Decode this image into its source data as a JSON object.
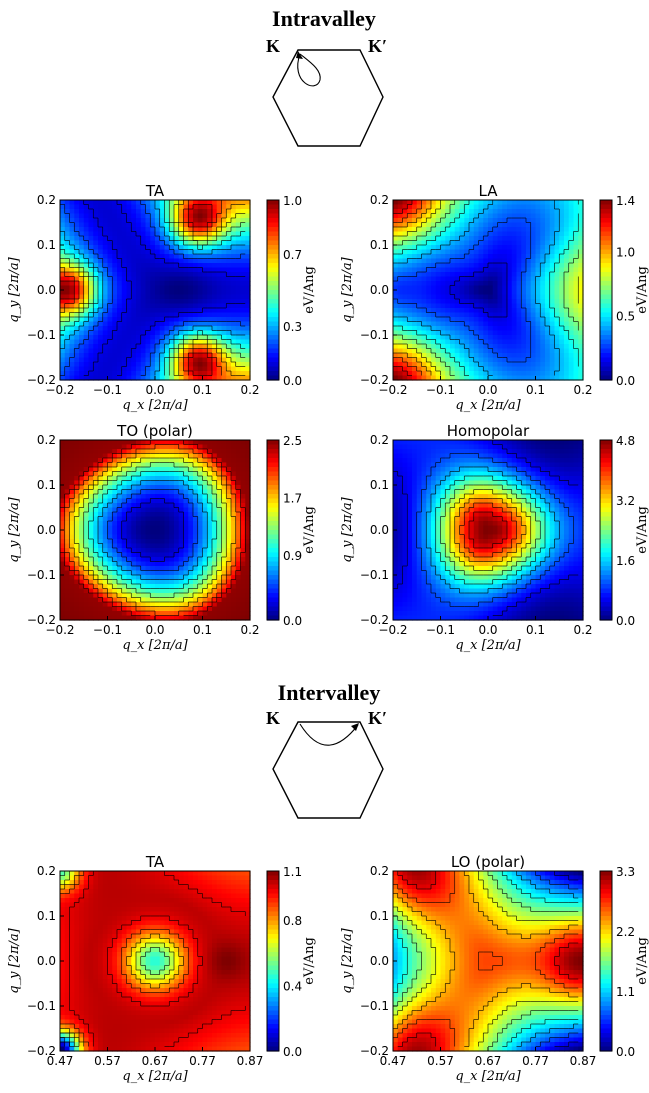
{
  "intravalley": {
    "title": "Intravalley",
    "k_label": "K",
    "kprime_label": "K′"
  },
  "intervalley": {
    "title": "Intervalley",
    "k_label": "K",
    "kprime_label": "K′"
  },
  "colormap": [
    "#00007f",
    "#0000ff",
    "#007fff",
    "#00ffff",
    "#7fff7f",
    "#ffff00",
    "#ff7f00",
    "#ff0000",
    "#7f0000"
  ],
  "chart_data": [
    {
      "type": "heatmap",
      "id": "intra-ta",
      "title": "TA",
      "xlabel": "q_x  [2π/a]",
      "ylabel": "q_y  [2π/a]",
      "xlim": [
        -0.2,
        0.2
      ],
      "ylim": [
        -0.2,
        0.2
      ],
      "xticks": [
        -0.2,
        -0.1,
        0.0,
        0.1,
        0.2
      ],
      "xticklabels": [
        "−0.2",
        "−0.1",
        "0.0",
        "0.1",
        "0.2"
      ],
      "yticks": [
        0.2,
        0.1,
        0.0,
        -0.1,
        -0.2
      ],
      "yticklabels": [
        "0.2",
        "0.1",
        "0.0",
        "−0.1",
        "−0.2"
      ],
      "colorbar": {
        "label": "eV/Ang",
        "min": 0.0,
        "max": 1.0,
        "ticks": [
          "1.0",
          "0.7",
          "0.3",
          "0.0"
        ],
        "tickvalues": [
          1.0,
          0.7,
          0.3,
          0.0
        ]
      },
      "peaks": [
        {
          "x": -0.18,
          "y": 0.0,
          "value": 0.95
        },
        {
          "x": 0.09,
          "y": 0.155,
          "value": 0.95
        },
        {
          "x": 0.09,
          "y": -0.155,
          "value": 0.95
        }
      ],
      "minima": [
        {
          "x": 0.05,
          "y": 0.0,
          "value": 0.05
        },
        {
          "x": -0.08,
          "y": 0.1,
          "value": 0.1
        },
        {
          "x": -0.08,
          "y": -0.1,
          "value": 0.1
        }
      ]
    },
    {
      "type": "heatmap",
      "id": "intra-la",
      "title": "LA",
      "xlabel": "q_x  [2π/a]",
      "ylabel": "q_y  [2π/a]",
      "xlim": [
        -0.2,
        0.2
      ],
      "ylim": [
        -0.2,
        0.2
      ],
      "xticks": [
        -0.2,
        -0.1,
        0.0,
        0.1,
        0.2
      ],
      "xticklabels": [
        "−0.2",
        "−0.1",
        "0.0",
        "0.1",
        "0.2"
      ],
      "yticks": [
        0.2,
        0.1,
        0.0,
        -0.1,
        -0.2
      ],
      "yticklabels": [
        "0.2",
        "0.1",
        "0.0",
        "−0.1",
        "−0.2"
      ],
      "colorbar": {
        "label": "eV/Ang",
        "min": 0.0,
        "max": 1.4,
        "ticks": [
          "1.4",
          "1.0",
          "0.5",
          "0.0"
        ],
        "tickvalues": [
          1.4,
          1.0,
          0.5,
          0.0
        ]
      },
      "peaks": [
        {
          "x": -0.2,
          "y": 0.2,
          "value": 1.3
        },
        {
          "x": -0.2,
          "y": -0.2,
          "value": 1.3
        },
        {
          "x": 0.2,
          "y": 0.0,
          "value": 0.9
        }
      ],
      "minima": [
        {
          "x": 0.0,
          "y": 0.0,
          "value": 0.1
        },
        {
          "x": -0.2,
          "y": 0.0,
          "value": 0.1
        },
        {
          "x": 0.1,
          "y": 0.17,
          "value": 0.1
        },
        {
          "x": 0.1,
          "y": -0.17,
          "value": 0.1
        }
      ]
    },
    {
      "type": "heatmap",
      "id": "intra-to",
      "title": "TO (polar)",
      "xlabel": "q_x  [2π/a]",
      "ylabel": "q_y  [2π/a]",
      "xlim": [
        -0.2,
        0.2
      ],
      "ylim": [
        -0.2,
        0.2
      ],
      "xticks": [
        -0.2,
        -0.1,
        0.0,
        0.1,
        0.2
      ],
      "xticklabels": [
        "−0.2",
        "−0.1",
        "0.0",
        "0.1",
        "0.2"
      ],
      "yticks": [
        0.2,
        0.1,
        0.0,
        -0.1,
        -0.2
      ],
      "yticklabels": [
        "0.2",
        "0.1",
        "0.0",
        "−0.1",
        "−0.2"
      ],
      "colorbar": {
        "label": "eV/Ang",
        "min": 0.0,
        "max": 2.5,
        "ticks": [
          "2.5",
          "1.7",
          "0.9",
          "0.0"
        ],
        "tickvalues": [
          2.5,
          1.7,
          0.9,
          0.0
        ]
      },
      "center": {
        "x": 0.0,
        "y": 0.0,
        "value": 0.3
      },
      "edge_value": 2.3
    },
    {
      "type": "heatmap",
      "id": "intra-homo",
      "title": "Homopolar",
      "xlabel": "q_x  [2π/a]",
      "ylabel": "q_y  [2π/a]",
      "xlim": [
        -0.2,
        0.2
      ],
      "ylim": [
        -0.2,
        0.2
      ],
      "xticks": [
        -0.2,
        -0.1,
        0.0,
        0.1,
        0.2
      ],
      "xticklabels": [
        "−0.2",
        "−0.1",
        "0.0",
        "0.1",
        "0.2"
      ],
      "yticks": [
        0.2,
        0.1,
        0.0,
        -0.1,
        -0.2
      ],
      "yticklabels": [
        "0.2",
        "0.1",
        "0.0",
        "−0.1",
        "−0.2"
      ],
      "colorbar": {
        "label": "eV/Ang",
        "min": 0.0,
        "max": 4.8,
        "ticks": [
          "4.8",
          "3.2",
          "1.6",
          "0.0"
        ],
        "tickvalues": [
          4.8,
          3.2,
          1.6,
          0.0
        ]
      },
      "center": {
        "x": 0.0,
        "y": 0.0,
        "value": 4.7
      },
      "edge_value": 0.8
    },
    {
      "type": "heatmap",
      "id": "inter-ta",
      "title": "TA",
      "xlabel": "q_x  [2π/a]",
      "ylabel": "q_y  [2π/a]",
      "xlim": [
        0.47,
        0.87
      ],
      "ylim": [
        -0.2,
        0.2
      ],
      "xticks": [
        0.47,
        0.57,
        0.67,
        0.77,
        0.87
      ],
      "xticklabels": [
        "0.47",
        "0.57",
        "0.67",
        "0.77",
        "0.87"
      ],
      "yticks": [
        0.2,
        0.1,
        0.0,
        -0.1,
        -0.2
      ],
      "yticklabels": [
        "0.2",
        "0.1",
        "0.0",
        "−0.1",
        "−0.2"
      ],
      "colorbar": {
        "label": "eV/Ang",
        "min": 0.0,
        "max": 1.1,
        "ticks": [
          "1.1",
          "0.8",
          "0.4",
          "0.0"
        ],
        "tickvalues": [
          1.1,
          0.8,
          0.4,
          0.0
        ]
      },
      "center": {
        "x": 0.67,
        "y": 0.0,
        "value": 0.05
      },
      "ridge_value": 1.05,
      "corner_minima": [
        {
          "x": 0.47,
          "y": 0.2,
          "value": 0.1
        },
        {
          "x": 0.47,
          "y": -0.2,
          "value": 0.1
        }
      ]
    },
    {
      "type": "heatmap",
      "id": "inter-lo",
      "title": "LO (polar)",
      "xlabel": "q_x  [2π/a]",
      "ylabel": "q_y  [2π/a]",
      "xlim": [
        0.47,
        0.87
      ],
      "ylim": [
        -0.2,
        0.2
      ],
      "xticks": [
        0.47,
        0.57,
        0.67,
        0.77,
        0.87
      ],
      "xticklabels": [
        "0.47",
        "0.57",
        "0.67",
        "0.77",
        "0.87"
      ],
      "yticks": [
        0.2,
        0.1,
        0.0,
        -0.1,
        -0.2
      ],
      "yticklabels": [
        "0.2",
        "0.1",
        "0.0",
        "−0.1",
        "−0.2"
      ],
      "colorbar": {
        "label": "eV/Ang",
        "min": 0.0,
        "max": 3.3,
        "ticks": [
          "3.3",
          "2.2",
          "1.1",
          "0.0"
        ],
        "tickvalues": [
          3.3,
          2.2,
          1.1,
          0.0
        ]
      },
      "center": {
        "x": 0.67,
        "y": 0.0,
        "value": 2.6
      },
      "peaks": [
        {
          "x": 0.5,
          "y": 0.2,
          "value": 3.2
        },
        {
          "x": 0.5,
          "y": -0.2,
          "value": 3.2
        },
        {
          "x": 0.87,
          "y": 0.0,
          "value": 3.1
        }
      ],
      "minima": [
        {
          "x": 0.47,
          "y": 0.0,
          "value": 0.8
        },
        {
          "x": 0.75,
          "y": 0.19,
          "value": 0.8
        },
        {
          "x": 0.75,
          "y": -0.19,
          "value": 0.8
        }
      ]
    }
  ]
}
